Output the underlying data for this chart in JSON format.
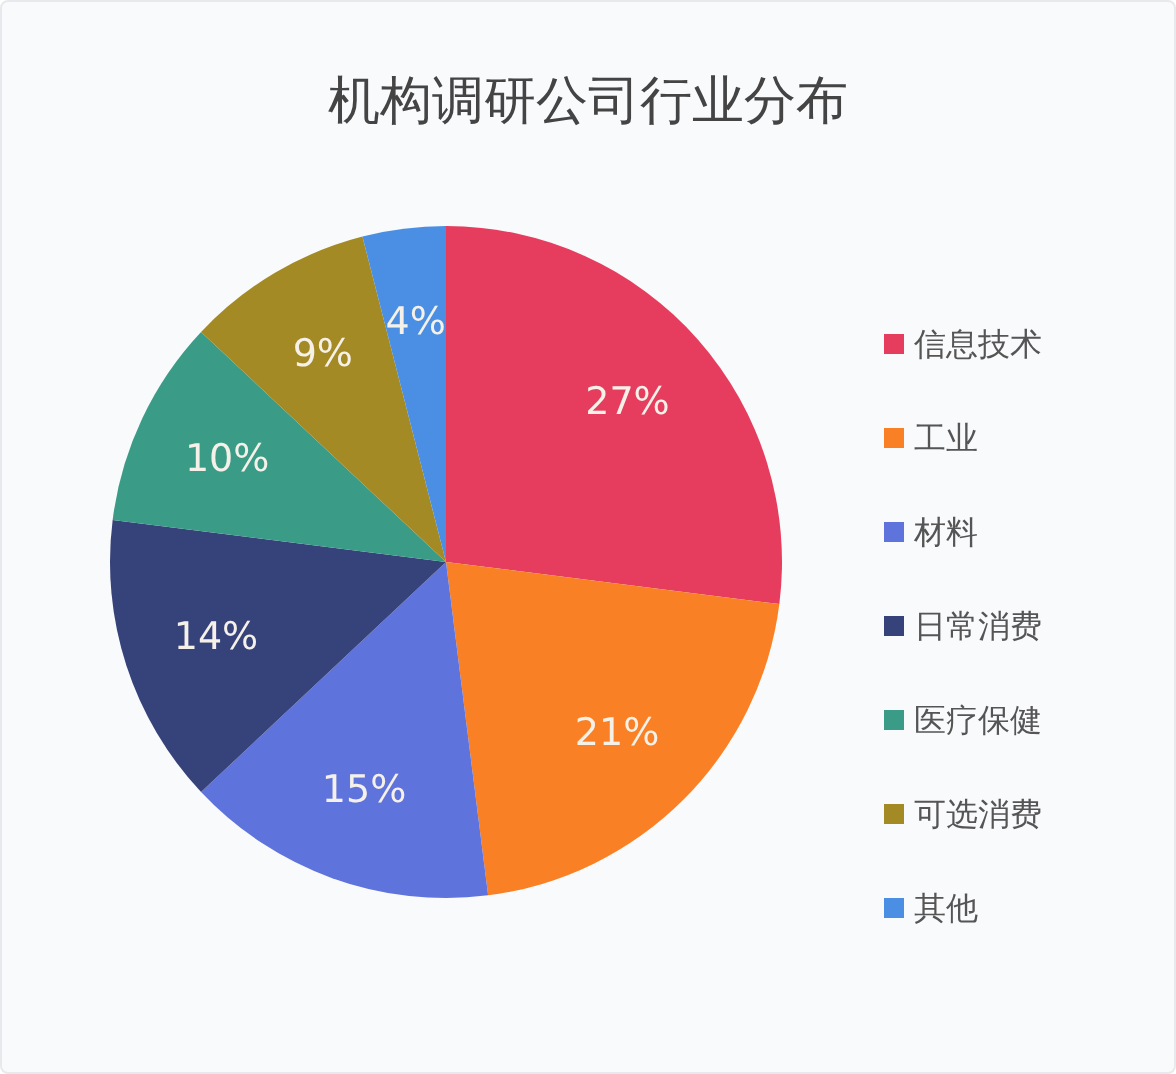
{
  "chart_data": {
    "type": "pie",
    "title": "机构调研公司行业分布",
    "categories": [
      "信息技术",
      "工业",
      "材料",
      "日常消费",
      "医疗保健",
      "可选消费",
      "其他"
    ],
    "values": [
      27,
      21,
      15,
      14,
      10,
      9,
      4
    ],
    "colors": [
      "#e63d5e",
      "#f98025",
      "#5f73dc",
      "#36427a",
      "#3a9b87",
      "#a48a24",
      "#4a8fe3"
    ],
    "value_labels": [
      "27%",
      "21%",
      "15%",
      "14%",
      "10%",
      "9%",
      "4%"
    ],
    "legend": "right"
  }
}
